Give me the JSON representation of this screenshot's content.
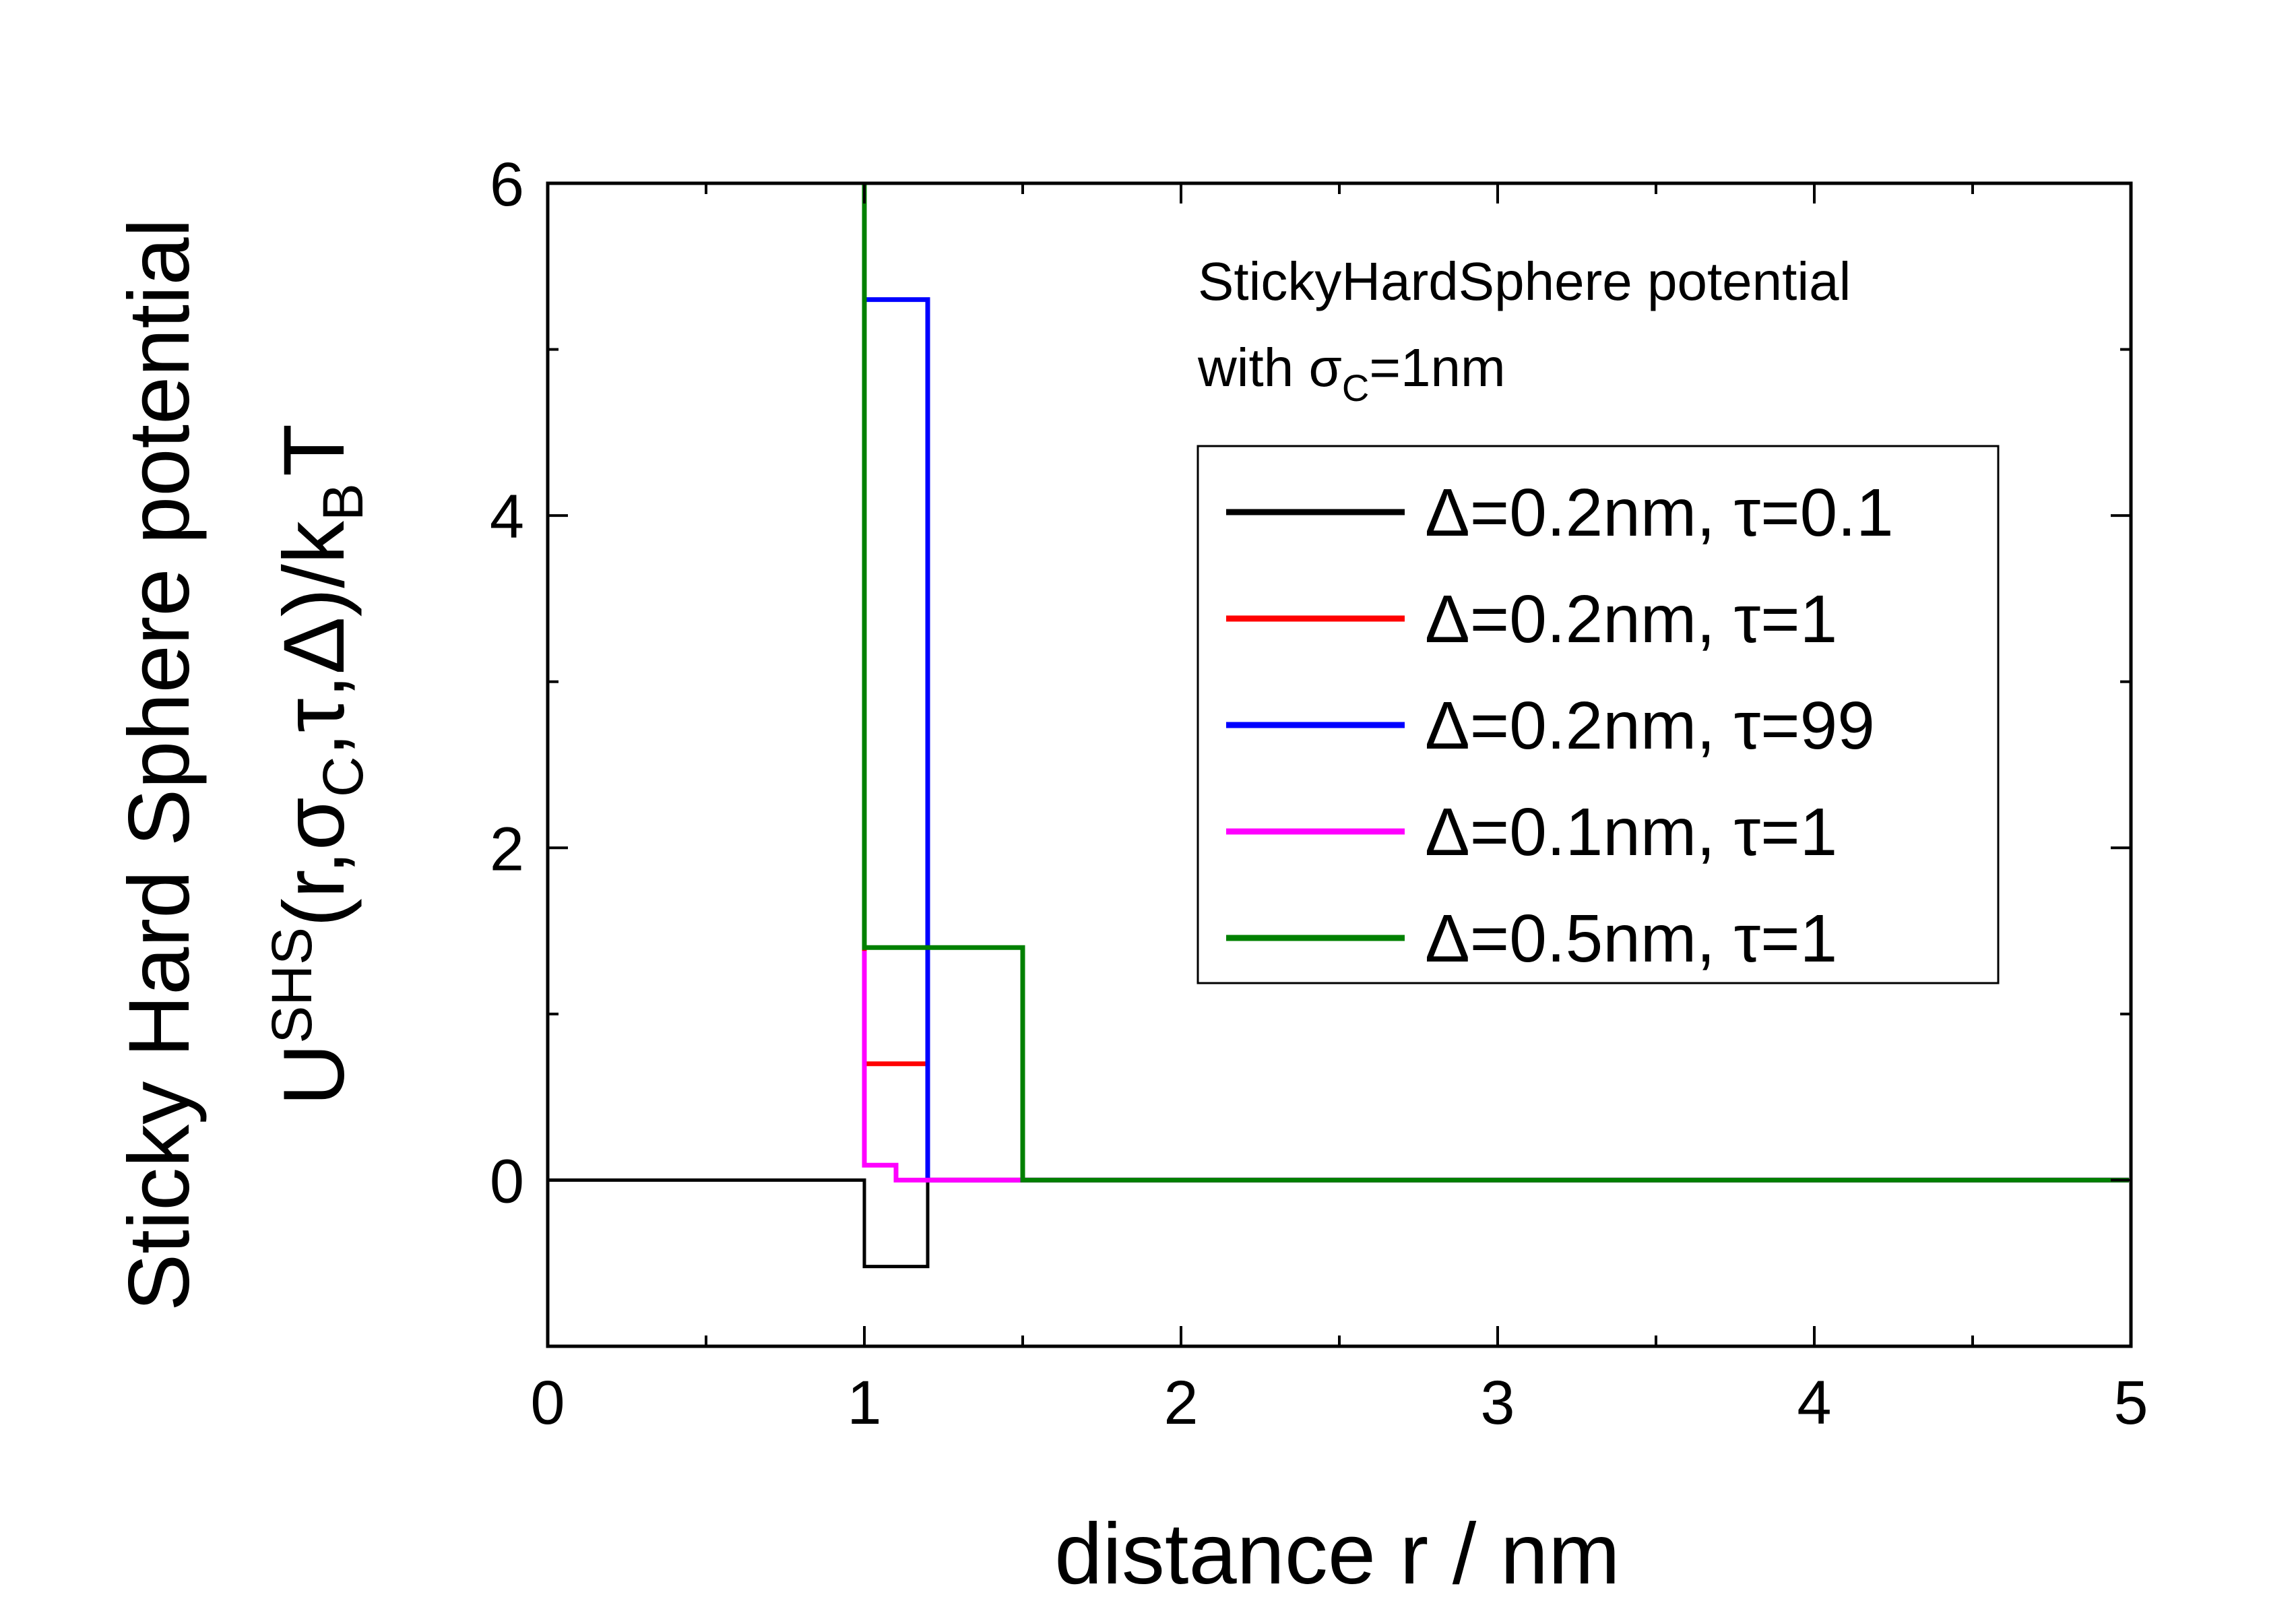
{
  "chart_data": {
    "type": "line",
    "title": "",
    "xlabel": "distance r / nm",
    "ylabel": {
      "line1": "Sticky Hard Sphere potential",
      "line2": {
        "U": "U",
        "sup": "SHS",
        "a": "(r,σ",
        "sub_c": "C",
        "b": ",τ,Δ)/k",
        "sub_b": "B",
        "c": "T"
      }
    },
    "xlim": [
      0,
      5
    ],
    "ylim": [
      -1,
      6
    ],
    "x_ticks": [
      "0",
      "1",
      "2",
      "3",
      "4",
      "5"
    ],
    "y_ticks": [
      "0",
      "2",
      "4",
      "6"
    ],
    "grid": false,
    "legend_position": "right",
    "annotation": {
      "line1": "StickyHardSphere potential",
      "line2_prefix": "with σ",
      "line2_sub": "C",
      "line2_suffix": "=1nm"
    },
    "series": [
      {
        "name": "Δ=0.2nm, τ=0.1",
        "color": "#000000",
        "x": [
          0,
          1,
          1,
          1.2,
          1.2,
          5
        ],
        "y": [
          0,
          0,
          -0.52,
          -0.52,
          0,
          0
        ]
      },
      {
        "name": "Δ=0.2nm, τ=1",
        "color": "#ff0000",
        "x": [
          1,
          1,
          1.2,
          1.2,
          5
        ],
        "y": [
          6,
          0.7,
          0.7,
          0,
          0
        ]
      },
      {
        "name": "Δ=0.2nm, τ=99",
        "color": "#0000ff",
        "x": [
          1,
          1,
          1.2,
          1.2,
          5
        ],
        "y": [
          6,
          5.3,
          5.3,
          0,
          0
        ]
      },
      {
        "name": "Δ=0.1nm, τ=1",
        "color": "#ff00ff",
        "x": [
          1,
          1,
          1.1,
          1.1,
          5
        ],
        "y": [
          1.38,
          0.09,
          0.09,
          0,
          0
        ]
      },
      {
        "name": "Δ=0.5nm, τ=1",
        "color": "#008000",
        "x": [
          1,
          1,
          1.5,
          1.5,
          5
        ],
        "y": [
          6,
          1.4,
          1.4,
          0,
          0
        ]
      }
    ]
  }
}
